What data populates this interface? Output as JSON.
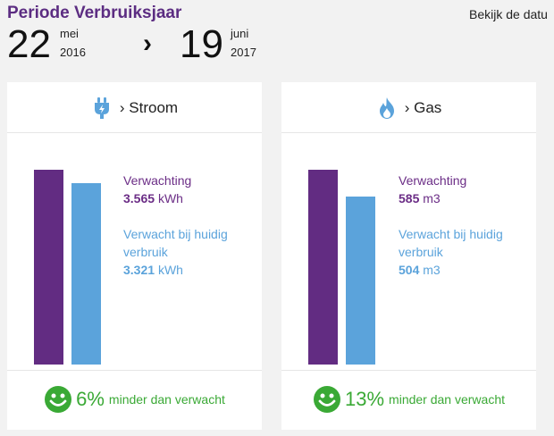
{
  "period": {
    "title": "Periode Verbruiksjaar",
    "start": {
      "day": "22",
      "month": "mei",
      "year": "2016"
    },
    "end": {
      "day": "19",
      "month": "juni",
      "year": "2017"
    },
    "chevron": "›",
    "view_link": "Bekijk de datu"
  },
  "cards": [
    {
      "icon": "plug-icon",
      "label": "› Stroom",
      "expected_label": "Verwachting",
      "expected_value": "3.565",
      "expected_unit": "kWh",
      "current_label_line1": "Verwacht bij huidig",
      "current_label_line2": "verbruik",
      "current_value": "3.321",
      "current_unit": "kWh",
      "expected_fraction": 1.0,
      "current_fraction": 0.9316,
      "percent": "6%",
      "percent_text": "minder dan verwacht"
    },
    {
      "icon": "flame-icon",
      "label": "› Gas",
      "expected_label": "Verwachting",
      "expected_value": "585",
      "expected_unit": "m3",
      "current_label_line1": "Verwacht bij huidig",
      "current_label_line2": "verbruik",
      "current_value": "504",
      "current_unit": "m3",
      "expected_fraction": 1.0,
      "current_fraction": 0.8615,
      "percent": "13%",
      "percent_text": "minder dan verwacht"
    }
  ],
  "colors": {
    "purple": "#622c82",
    "blue": "#5ba3db",
    "green": "#3aa935"
  }
}
